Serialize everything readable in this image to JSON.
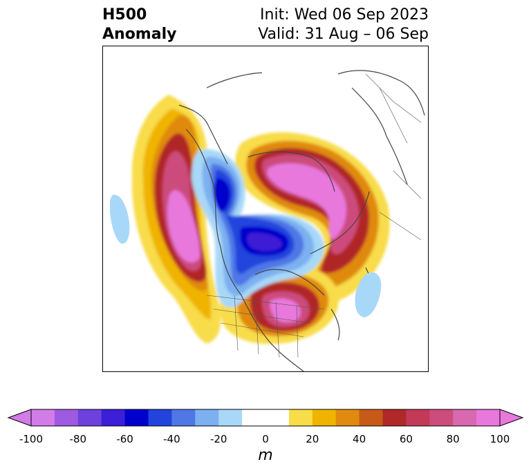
{
  "title": {
    "left_line1": "H500",
    "left_line2": "Anomaly",
    "right_line1": "Init: Wed 06 Sep 2023",
    "right_line2": "Valid: 31 Aug – 06 Sep"
  },
  "colorbar": {
    "min": -100,
    "max": 100,
    "step": 10,
    "ticks": [
      -100,
      -80,
      -60,
      -40,
      -20,
      0,
      20,
      40,
      60,
      80,
      100
    ],
    "tick_labels": [
      "-100",
      "-80",
      "-60",
      "-40",
      "-20",
      "0",
      "20",
      "40",
      "60",
      "80",
      "100"
    ],
    "unit": "m",
    "extend": "both",
    "colors": [
      "#d27ce8",
      "#9e5ae0",
      "#6e40dc",
      "#3c1fd6",
      "#0000cc",
      "#2244dd",
      "#4f77e6",
      "#7cb0f0",
      "#a8d8f8",
      "#ffffff",
      "#ffffff",
      "#f8dc48",
      "#f0b400",
      "#e08a10",
      "#c85a18",
      "#b02828",
      "#c43858",
      "#cc4c7c",
      "#d868b0",
      "#e878dc"
    ],
    "under_color": "#d27ce8",
    "over_color": "#e878dc"
  },
  "map": {
    "projection": "polar-stereographic",
    "region": "North America / North Atlantic",
    "features": [
      "coastlines",
      "country borders",
      "state borders"
    ]
  }
}
